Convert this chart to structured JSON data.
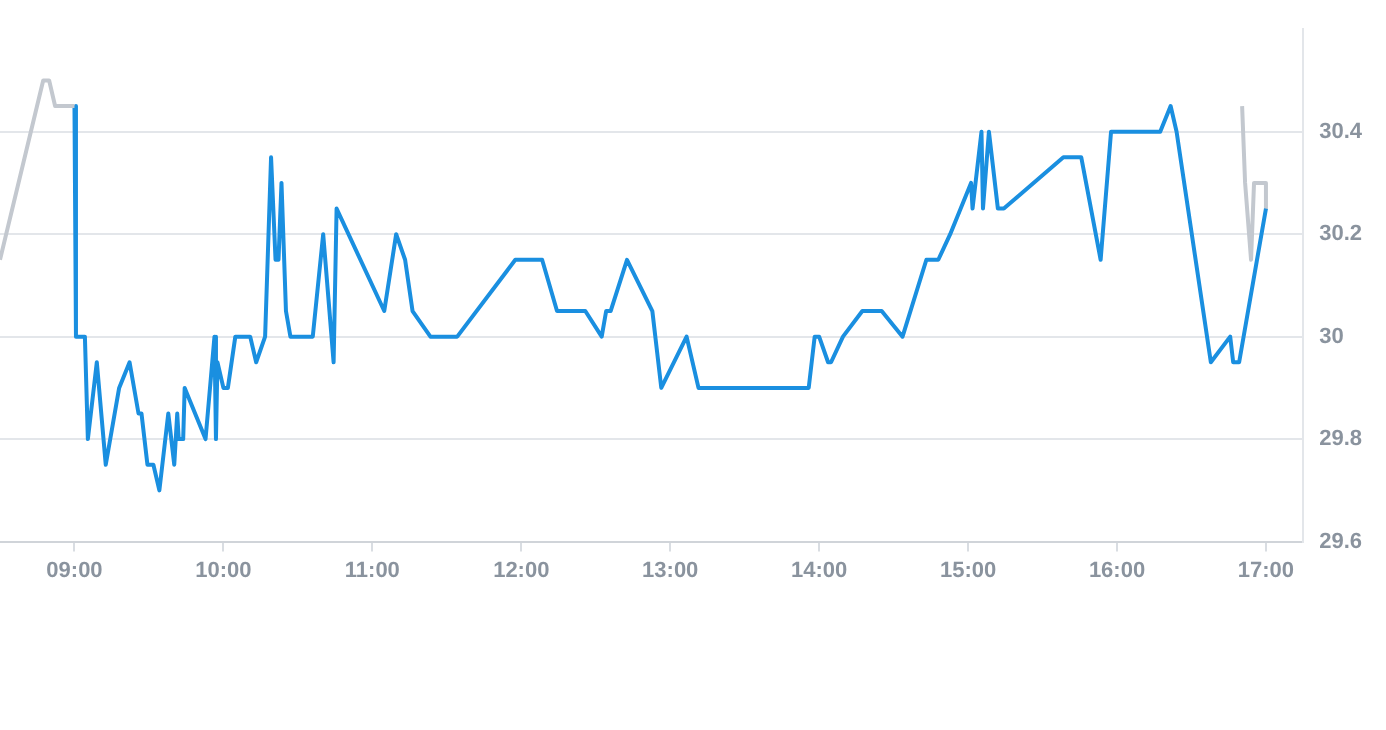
{
  "chart_data": {
    "type": "line",
    "xlim": [
      8.5,
      17.25
    ],
    "ylim": [
      29.6,
      30.6
    ],
    "xticks": [
      {
        "value": 9,
        "label": "09:00"
      },
      {
        "value": 10,
        "label": "10:00"
      },
      {
        "value": 11,
        "label": "11:00"
      },
      {
        "value": 12,
        "label": "12:00"
      },
      {
        "value": 13,
        "label": "13:00"
      },
      {
        "value": 14,
        "label": "14:00"
      },
      {
        "value": 15,
        "label": "15:00"
      },
      {
        "value": 16,
        "label": "16:00"
      },
      {
        "value": 17,
        "label": "17:00"
      }
    ],
    "yticks": [
      29.6,
      29.8,
      30,
      30.2,
      30.4
    ],
    "grid": "y",
    "legend": false,
    "marker": "none",
    "line_style": "solid",
    "series": [
      {
        "color": "#c3c8cf",
        "x": [
          8.5,
          8.79,
          8.83,
          8.87,
          9.0
        ],
        "values": [
          30.15,
          30.5,
          30.5,
          30.45,
          30.45
        ]
      },
      {
        "color": "#1a8fe0",
        "x": [
          9.0,
          9.01,
          9.07,
          9.09,
          9.15,
          9.21,
          9.3,
          9.37,
          9.43,
          9.45,
          9.49,
          9.53,
          9.57,
          9.63,
          9.67,
          9.69,
          9.7,
          9.73,
          9.74,
          9.88,
          9.94,
          9.95,
          9.96,
          10.0,
          10.03,
          10.08,
          10.18,
          10.22,
          10.28,
          10.32,
          10.35,
          10.37,
          10.39,
          10.42,
          10.45,
          10.6,
          10.67,
          10.74,
          10.76,
          11.08,
          11.16,
          11.22,
          11.27,
          11.39,
          11.57,
          11.96,
          12.14,
          12.24,
          12.43,
          12.54,
          12.57,
          12.6,
          12.71,
          12.88,
          12.94,
          13.11,
          13.19,
          13.93,
          13.97,
          14.0,
          14.06,
          14.08,
          14.16,
          14.29,
          14.42,
          14.56,
          14.72,
          14.8,
          14.88,
          15.02,
          15.03,
          15.09,
          15.1,
          15.14,
          15.2,
          15.24,
          15.64,
          15.76,
          15.89,
          15.96,
          16.29,
          16.36,
          16.4,
          16.63,
          16.76,
          16.78,
          16.82,
          17.0
        ],
        "values": [
          30.45,
          30,
          30,
          29.8,
          29.95,
          29.75,
          29.9,
          29.95,
          29.85,
          29.85,
          29.75,
          29.75,
          29.7,
          29.85,
          29.75,
          29.85,
          29.8,
          29.8,
          29.9,
          29.8,
          30,
          29.8,
          29.95,
          29.9,
          29.9,
          30,
          30,
          29.95,
          30,
          30.35,
          30.15,
          30.15,
          30.3,
          30.05,
          30,
          30,
          30.2,
          29.95,
          30.25,
          30.05,
          30.2,
          30.15,
          30.05,
          30,
          30,
          30.15,
          30.15,
          30.05,
          30.05,
          30,
          30.05,
          30.05,
          30.15,
          30.05,
          29.9,
          30,
          29.9,
          29.9,
          30,
          30,
          29.95,
          29.95,
          30,
          30.05,
          30.05,
          30,
          30.15,
          30.15,
          30.2,
          30.3,
          30.25,
          30.4,
          30.25,
          30.4,
          30.25,
          30.25,
          30.35,
          30.35,
          30.15,
          30.4,
          30.4,
          30.45,
          30.4,
          29.95,
          30,
          29.95,
          29.95,
          30.25
        ]
      },
      {
        "color": "#c3c8cf",
        "x": [
          16.84,
          16.86,
          16.9,
          16.92,
          17.0,
          17.0
        ],
        "values": [
          30.45,
          30.3,
          30.15,
          30.3,
          30.3,
          30.25
        ]
      }
    ]
  }
}
